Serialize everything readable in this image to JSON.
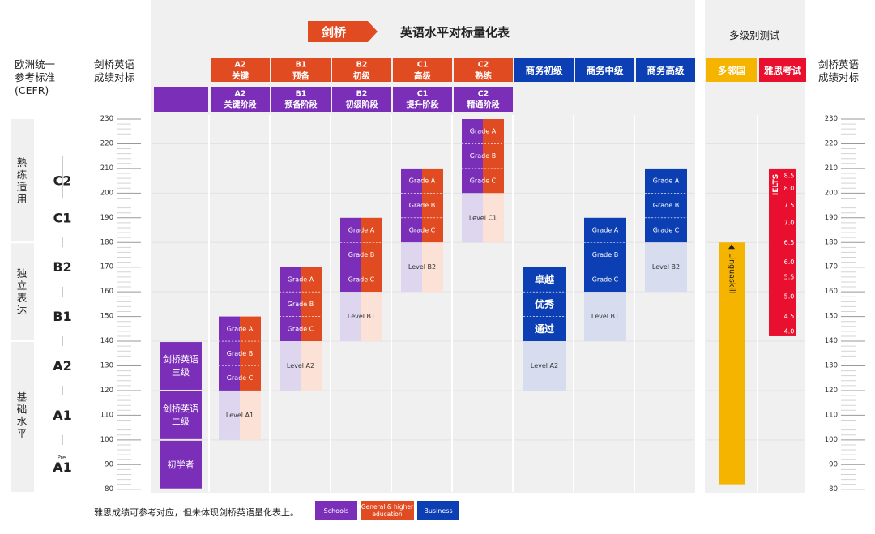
{
  "header": {
    "cambridge_tag": "剑桥",
    "main_title": "英语水平对标量化表",
    "multi_title": "多级别测试"
  },
  "left_labels": {
    "cefr_line1": "欧洲统一",
    "cefr_line2": "参考标准",
    "cefr_line3": "(CEFR)",
    "scale_line1": "剑桥英语",
    "scale_line2": "成绩对标"
  },
  "right_labels": {
    "scale_line1": "剑桥英语",
    "scale_line2": "成绩对标"
  },
  "cefr_groups": [
    {
      "label": "熟练适用",
      "from": 230,
      "to": 180
    },
    {
      "label": "独立表达",
      "from": 180,
      "to": 140
    },
    {
      "label": "基础水平",
      "from": 140,
      "to": 80
    }
  ],
  "cefr_levels": [
    {
      "label": "C2",
      "y": 205
    },
    {
      "label": "C1",
      "y": 190
    },
    {
      "label": "B2",
      "y": 170
    },
    {
      "label": "B1",
      "y": 150
    },
    {
      "label": "A2",
      "y": 130
    },
    {
      "label": "A1",
      "y": 110
    },
    {
      "label": "A1",
      "pre": "Pre",
      "y": 90
    }
  ],
  "columns": [
    {
      "top": "A2",
      "bottom": "关键",
      "sub_top": "A2",
      "sub_bottom": "关键阶段",
      "color": "#e14b22"
    },
    {
      "top": "B1",
      "bottom": "预备",
      "sub_top": "B1",
      "sub_bottom": "预备阶段",
      "color": "#e14b22"
    },
    {
      "top": "B2",
      "bottom": "初级",
      "sub_top": "B2",
      "sub_bottom": "初级阶段",
      "color": "#e14b22"
    },
    {
      "top": "C1",
      "bottom": "高级",
      "sub_top": "C1",
      "sub_bottom": "提升阶段",
      "color": "#e14b22"
    },
    {
      "top": "C2",
      "bottom": "熟练",
      "sub_top": "C2",
      "sub_bottom": "精通阶段",
      "color": "#e14b22"
    },
    {
      "top": "商务初级",
      "color": "#0c3fb4"
    },
    {
      "top": "商务中级",
      "color": "#0c3fb4"
    },
    {
      "top": "商务高级",
      "color": "#0c3fb4"
    },
    {
      "top": "多邻国",
      "color": "#f5b400"
    },
    {
      "top": "雅思考试",
      "color": "#e8102e"
    }
  ],
  "legend": {
    "note": "雅思成绩可参考对应，但未体现剑桥英语量化表上。",
    "items": [
      {
        "label": "Schools",
        "color": "#7b2fb8"
      },
      {
        "label": "General & higher education",
        "color": "#e14b22"
      },
      {
        "label": "Business",
        "color": "#0c3fb4"
      }
    ]
  },
  "colors": {
    "schools": "#7b2fb8",
    "general": "#e14b22",
    "business": "#0c3fb4",
    "duolingo": "#f5b400",
    "ielts": "#e8102e",
    "purple_light": "#ddd6ee",
    "orange_light": "#fbe1d6",
    "blue_light": "#d7dcef",
    "grid": "#f0f0f0"
  },
  "chart_data": {
    "type": "table",
    "scale": {
      "min": 80,
      "max": 230,
      "ticks": [
        230,
        220,
        210,
        200,
        190,
        180,
        170,
        160,
        150,
        140,
        130,
        120,
        110,
        100,
        90,
        80
      ]
    },
    "yl_blocks": [
      {
        "label": "剑桥英语三级",
        "from": 120,
        "to": 140
      },
      {
        "label": "剑桥英语二级",
        "from": 100,
        "to": 120
      },
      {
        "label": "初学者",
        "from": 80,
        "to": 100
      }
    ],
    "exams": [
      {
        "exam": "A2 关键",
        "col": 0,
        "grades": [
          {
            "label": "Grade A",
            "from": 140,
            "to": 150
          },
          {
            "label": "Grade B",
            "from": 130,
            "to": 140
          },
          {
            "label": "Grade C",
            "from": 120,
            "to": 130
          }
        ],
        "level": {
          "label": "Level A1",
          "from": 100,
          "to": 120
        }
      },
      {
        "exam": "B1 预备",
        "col": 1,
        "grades": [
          {
            "label": "Grade A",
            "from": 160,
            "to": 170
          },
          {
            "label": "Grade B",
            "from": 150,
            "to": 160
          },
          {
            "label": "Grade C",
            "from": 140,
            "to": 150
          }
        ],
        "level": {
          "label": "Level A2",
          "from": 120,
          "to": 140
        }
      },
      {
        "exam": "B2 初级",
        "col": 2,
        "grades": [
          {
            "label": "Grade A",
            "from": 180,
            "to": 190
          },
          {
            "label": "Grade B",
            "from": 170,
            "to": 180
          },
          {
            "label": "Grade C",
            "from": 160,
            "to": 170
          }
        ],
        "level": {
          "label": "Level B1",
          "from": 140,
          "to": 160
        }
      },
      {
        "exam": "C1 高级",
        "col": 3,
        "grades": [
          {
            "label": "Grade A",
            "from": 200,
            "to": 210
          },
          {
            "label": "Grade B",
            "from": 190,
            "to": 200
          },
          {
            "label": "Grade C",
            "from": 180,
            "to": 190
          }
        ],
        "level": {
          "label": "Level B2",
          "from": 160,
          "to": 180
        }
      },
      {
        "exam": "C2 熟练",
        "col": 4,
        "grades": [
          {
            "label": "Grade A",
            "from": 220,
            "to": 230
          },
          {
            "label": "Grade B",
            "from": 210,
            "to": 220
          },
          {
            "label": "Grade C",
            "from": 200,
            "to": 210
          }
        ],
        "level": {
          "label": "Level C1",
          "from": 180,
          "to": 200
        }
      },
      {
        "exam": "商务初级",
        "col": 5,
        "grades": [
          {
            "label": "卓越",
            "from": 160,
            "to": 170
          },
          {
            "label": "优秀",
            "from": 150,
            "to": 160
          },
          {
            "label": "通过",
            "from": 140,
            "to": 150
          }
        ],
        "level": {
          "label": "Level A2",
          "from": 120,
          "to": 140
        }
      },
      {
        "exam": "商务中级",
        "col": 6,
        "grades": [
          {
            "label": "Grade A",
            "from": 180,
            "to": 190
          },
          {
            "label": "Grade B",
            "from": 170,
            "to": 180
          },
          {
            "label": "Grade C",
            "from": 160,
            "to": 170
          }
        ],
        "level": {
          "label": "Level B1",
          "from": 140,
          "to": 160
        }
      },
      {
        "exam": "商务高级",
        "col": 7,
        "grades": [
          {
            "label": "Grade A",
            "from": 200,
            "to": 210
          },
          {
            "label": "Grade B",
            "from": 190,
            "to": 200
          },
          {
            "label": "Grade C",
            "from": 180,
            "to": 190
          }
        ],
        "level": {
          "label": "Level B2",
          "from": 160,
          "to": 180
        }
      }
    ],
    "linguaskill": {
      "label": "Linguaskill",
      "from": 82,
      "to": 180
    },
    "ielts": {
      "label": "IELTS",
      "from": 142,
      "to": 210,
      "bands": [
        {
          "band": "8.5",
          "y": 207
        },
        {
          "band": "8.0",
          "y": 202
        },
        {
          "band": "7.5",
          "y": 195
        },
        {
          "band": "7.0",
          "y": 188
        },
        {
          "band": "6.5",
          "y": 180
        },
        {
          "band": "6.0",
          "y": 172
        },
        {
          "band": "5.5",
          "y": 166
        },
        {
          "band": "5.0",
          "y": 158
        },
        {
          "band": "4.5",
          "y": 150
        },
        {
          "band": "4.0",
          "y": 144
        }
      ]
    }
  }
}
